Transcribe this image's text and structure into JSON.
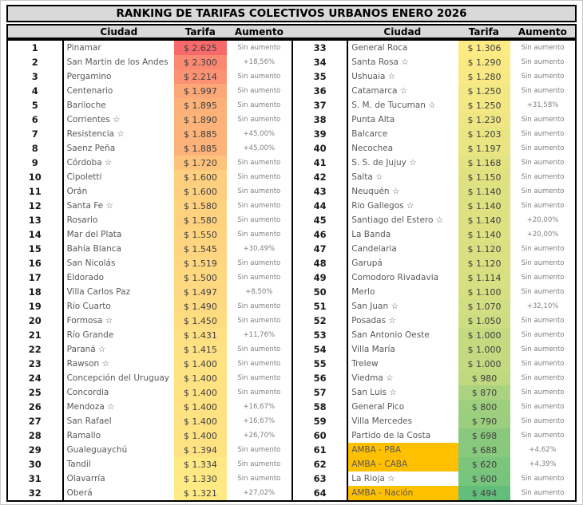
{
  "chart_data": {
    "type": "table",
    "title": "RANKING DE TARIFAS COLECTIVOS URBANOS ENERO 2026",
    "columns": {
      "rank": "",
      "ciudad": "Ciudad",
      "tarifa": "Tarifa",
      "aumento": "Aumento"
    },
    "color_scale": {
      "min": 494,
      "mid": 1313.5,
      "max": 2625,
      "min_color": "#63BE7B",
      "mid_color": "#FFEB84",
      "max_color": "#F8696B"
    },
    "colors": {
      "amba_highlight": "#FFC000",
      "header_bg": "#D9D9D9",
      "border": "#000000",
      "city_text": "#595959",
      "aumento_text": "#808080"
    },
    "layout": {
      "rows_per_column": 32,
      "split": "ranks 1-32 left half, ranks 33-64 right half"
    },
    "rows": [
      {
        "rank": 1,
        "city": "Pinamar",
        "tarifa": 2625,
        "tarifa_label": "$ 2.625",
        "aumento": "Sin aumento",
        "highlight": false
      },
      {
        "rank": 2,
        "city": "San Martin de los Andes",
        "tarifa": 2300,
        "tarifa_label": "$ 2.300",
        "aumento": "+18,56%",
        "highlight": false
      },
      {
        "rank": 3,
        "city": "Pergamino",
        "tarifa": 2214,
        "tarifa_label": "$ 2.214",
        "aumento": "Sin aumento",
        "highlight": false
      },
      {
        "rank": 4,
        "city": "Centenario",
        "tarifa": 1997,
        "tarifa_label": "$ 1.997",
        "aumento": "Sin aumento",
        "highlight": false
      },
      {
        "rank": 5,
        "city": "Bariloche",
        "tarifa": 1895,
        "tarifa_label": "$ 1.895",
        "aumento": "Sin aumento",
        "highlight": false
      },
      {
        "rank": 6,
        "city": "Corrientes ☆",
        "tarifa": 1890,
        "tarifa_label": "$ 1.890",
        "aumento": "Sin aumento",
        "highlight": false
      },
      {
        "rank": 7,
        "city": "Resistencia ☆",
        "tarifa": 1885,
        "tarifa_label": "$ 1.885",
        "aumento": "+45,00%",
        "highlight": false
      },
      {
        "rank": 8,
        "city": "Saenz Peña",
        "tarifa": 1885,
        "tarifa_label": "$ 1.885",
        "aumento": "+45,00%",
        "highlight": false
      },
      {
        "rank": 9,
        "city": "Córdoba ☆",
        "tarifa": 1720,
        "tarifa_label": "$ 1.720",
        "aumento": "Sin aumento",
        "highlight": false
      },
      {
        "rank": 10,
        "city": "Cipoletti",
        "tarifa": 1600,
        "tarifa_label": "$ 1.600",
        "aumento": "Sin aumento",
        "highlight": false
      },
      {
        "rank": 11,
        "city": "Orán",
        "tarifa": 1600,
        "tarifa_label": "$ 1.600",
        "aumento": "Sin aumento",
        "highlight": false
      },
      {
        "rank": 12,
        "city": "Santa Fe ☆",
        "tarifa": 1580,
        "tarifa_label": "$ 1.580",
        "aumento": "Sin aumento",
        "highlight": false
      },
      {
        "rank": 13,
        "city": "Rosario",
        "tarifa": 1580,
        "tarifa_label": "$ 1.580",
        "aumento": "Sin aumento",
        "highlight": false
      },
      {
        "rank": 14,
        "city": "Mar del Plata",
        "tarifa": 1550,
        "tarifa_label": "$ 1.550",
        "aumento": "Sin aumento",
        "highlight": false
      },
      {
        "rank": 15,
        "city": "Bahía Blanca",
        "tarifa": 1545,
        "tarifa_label": "$ 1.545",
        "aumento": "+30,49%",
        "highlight": false
      },
      {
        "rank": 16,
        "city": "San Nicolás",
        "tarifa": 1519,
        "tarifa_label": "$ 1.519",
        "aumento": "Sin aumento",
        "highlight": false
      },
      {
        "rank": 17,
        "city": "Eldorado",
        "tarifa": 1500,
        "tarifa_label": "$ 1.500",
        "aumento": "Sin aumento",
        "highlight": false
      },
      {
        "rank": 18,
        "city": "Villa Carlos Paz",
        "tarifa": 1497,
        "tarifa_label": "$ 1.497",
        "aumento": "+8,50%",
        "highlight": false
      },
      {
        "rank": 19,
        "city": "Río Cuarto",
        "tarifa": 1490,
        "tarifa_label": "$ 1.490",
        "aumento": "Sin aumento",
        "highlight": false
      },
      {
        "rank": 20,
        "city": "Formosa ☆",
        "tarifa": 1450,
        "tarifa_label": "$ 1.450",
        "aumento": "Sin aumento",
        "highlight": false
      },
      {
        "rank": 21,
        "city": "Río Grande",
        "tarifa": 1431,
        "tarifa_label": "$ 1.431",
        "aumento": "+11,76%",
        "highlight": false
      },
      {
        "rank": 22,
        "city": "Paraná ☆",
        "tarifa": 1415,
        "tarifa_label": "$ 1.415",
        "aumento": "Sin aumento",
        "highlight": false
      },
      {
        "rank": 23,
        "city": "Rawson ☆",
        "tarifa": 1400,
        "tarifa_label": "$ 1.400",
        "aumento": "Sin aumento",
        "highlight": false
      },
      {
        "rank": 24,
        "city": "Concepción del Uruguay",
        "tarifa": 1400,
        "tarifa_label": "$ 1.400",
        "aumento": "Sin aumento",
        "highlight": false
      },
      {
        "rank": 25,
        "city": "Concordia",
        "tarifa": 1400,
        "tarifa_label": "$ 1.400",
        "aumento": "Sin aumento",
        "highlight": false
      },
      {
        "rank": 26,
        "city": "Mendoza ☆",
        "tarifa": 1400,
        "tarifa_label": "$ 1.400",
        "aumento": "+16,67%",
        "highlight": false
      },
      {
        "rank": 27,
        "city": "San Rafael",
        "tarifa": 1400,
        "tarifa_label": "$ 1.400",
        "aumento": "+16,67%",
        "highlight": false
      },
      {
        "rank": 28,
        "city": "Ramallo",
        "tarifa": 1400,
        "tarifa_label": "$ 1.400",
        "aumento": "+26,70%",
        "highlight": false
      },
      {
        "rank": 29,
        "city": "Gualeguaychú",
        "tarifa": 1394,
        "tarifa_label": "$ 1.394",
        "aumento": "Sin aumento",
        "highlight": false
      },
      {
        "rank": 30,
        "city": "Tandil",
        "tarifa": 1334,
        "tarifa_label": "$ 1.334",
        "aumento": "Sin aumento",
        "highlight": false
      },
      {
        "rank": 31,
        "city": "Olavarría",
        "tarifa": 1330,
        "tarifa_label": "$ 1.330",
        "aumento": "Sin aumento",
        "highlight": false
      },
      {
        "rank": 32,
        "city": "Oberá",
        "tarifa": 1321,
        "tarifa_label": "$ 1.321",
        "aumento": "+27,02%",
        "highlight": false
      },
      {
        "rank": 33,
        "city": "General Roca",
        "tarifa": 1306,
        "tarifa_label": "$ 1.306",
        "aumento": "Sin aumento",
        "highlight": false
      },
      {
        "rank": 34,
        "city": "Santa Rosa ☆",
        "tarifa": 1290,
        "tarifa_label": "$ 1.290",
        "aumento": "Sin aumento",
        "highlight": false
      },
      {
        "rank": 35,
        "city": "Ushuaia ☆",
        "tarifa": 1280,
        "tarifa_label": "$ 1.280",
        "aumento": "Sin aumento",
        "highlight": false
      },
      {
        "rank": 36,
        "city": "Catamarca ☆",
        "tarifa": 1250,
        "tarifa_label": "$ 1.250",
        "aumento": "Sin aumento",
        "highlight": false
      },
      {
        "rank": 37,
        "city": "S. M. de Tucuman ☆",
        "tarifa": 1250,
        "tarifa_label": "$ 1.250",
        "aumento": "+31,58%",
        "highlight": false
      },
      {
        "rank": 38,
        "city": "Punta Alta",
        "tarifa": 1230,
        "tarifa_label": "$ 1.230",
        "aumento": "Sin aumento",
        "highlight": false
      },
      {
        "rank": 39,
        "city": "Balcarce",
        "tarifa": 1203,
        "tarifa_label": "$ 1.203",
        "aumento": "Sin aumento",
        "highlight": false
      },
      {
        "rank": 40,
        "city": "Necochea",
        "tarifa": 1197,
        "tarifa_label": "$ 1.197",
        "aumento": "Sin aumento",
        "highlight": false
      },
      {
        "rank": 41,
        "city": "S. S. de Jujuy ☆",
        "tarifa": 1168,
        "tarifa_label": "$ 1.168",
        "aumento": "Sin aumento",
        "highlight": false
      },
      {
        "rank": 42,
        "city": "Salta ☆",
        "tarifa": 1150,
        "tarifa_label": "$ 1.150",
        "aumento": "Sin aumento",
        "highlight": false
      },
      {
        "rank": 43,
        "city": "Neuquén ☆",
        "tarifa": 1140,
        "tarifa_label": "$ 1.140",
        "aumento": "Sin aumento",
        "highlight": false
      },
      {
        "rank": 44,
        "city": "Rio Gallegos ☆",
        "tarifa": 1140,
        "tarifa_label": "$ 1.140",
        "aumento": "Sin aumento",
        "highlight": false
      },
      {
        "rank": 45,
        "city": "Santiago del Estero ☆",
        "tarifa": 1140,
        "tarifa_label": "$ 1.140",
        "aumento": "+20,00%",
        "highlight": false
      },
      {
        "rank": 46,
        "city": "La Banda",
        "tarifa": 1140,
        "tarifa_label": "$ 1.140",
        "aumento": "+20,00%",
        "highlight": false
      },
      {
        "rank": 47,
        "city": "Candelaria",
        "tarifa": 1120,
        "tarifa_label": "$ 1.120",
        "aumento": "Sin aumento",
        "highlight": false
      },
      {
        "rank": 48,
        "city": "Garupá",
        "tarifa": 1120,
        "tarifa_label": "$ 1.120",
        "aumento": "Sin aumento",
        "highlight": false
      },
      {
        "rank": 49,
        "city": "Comodoro Rivadavia",
        "tarifa": 1114,
        "tarifa_label": "$ 1.114",
        "aumento": "Sin aumento",
        "highlight": false
      },
      {
        "rank": 50,
        "city": "Merlo",
        "tarifa": 1100,
        "tarifa_label": "$ 1.100",
        "aumento": "Sin aumento",
        "highlight": false
      },
      {
        "rank": 51,
        "city": "San Juan ☆",
        "tarifa": 1070,
        "tarifa_label": "$ 1.070",
        "aumento": "+32,10%",
        "highlight": false
      },
      {
        "rank": 52,
        "city": "Posadas ☆",
        "tarifa": 1050,
        "tarifa_label": "$ 1.050",
        "aumento": "Sin aumento",
        "highlight": false
      },
      {
        "rank": 53,
        "city": "San Antonio Oeste",
        "tarifa": 1000,
        "tarifa_label": "$ 1.000",
        "aumento": "Sin aumento",
        "highlight": false
      },
      {
        "rank": 54,
        "city": "Villa María",
        "tarifa": 1000,
        "tarifa_label": "$ 1.000",
        "aumento": "Sin aumento",
        "highlight": false
      },
      {
        "rank": 55,
        "city": "Trelew",
        "tarifa": 1000,
        "tarifa_label": "$ 1.000",
        "aumento": "Sin aumento",
        "highlight": false
      },
      {
        "rank": 56,
        "city": "Viedma ☆",
        "tarifa": 980,
        "tarifa_label": "$ 980",
        "aumento": "Sin aumento",
        "highlight": false
      },
      {
        "rank": 57,
        "city": "San Luis ☆",
        "tarifa": 870,
        "tarifa_label": "$ 870",
        "aumento": "Sin aumento",
        "highlight": false
      },
      {
        "rank": 58,
        "city": "General Pico",
        "tarifa": 800,
        "tarifa_label": "$ 800",
        "aumento": "Sin aumento",
        "highlight": false
      },
      {
        "rank": 59,
        "city": "Villa Mercedes",
        "tarifa": 790,
        "tarifa_label": "$ 790",
        "aumento": "Sin aumento",
        "highlight": false
      },
      {
        "rank": 60,
        "city": "Partido de la Costa",
        "tarifa": 698,
        "tarifa_label": "$ 698",
        "aumento": "Sin aumento",
        "highlight": false
      },
      {
        "rank": 61,
        "city": "AMBA - PBA",
        "tarifa": 688,
        "tarifa_label": "$ 688",
        "aumento": "+4,62%",
        "highlight": true
      },
      {
        "rank": 62,
        "city": "AMBA - CABA",
        "tarifa": 620,
        "tarifa_label": "$ 620",
        "aumento": "+4,39%",
        "highlight": true
      },
      {
        "rank": 63,
        "city": "La Rioja ☆",
        "tarifa": 600,
        "tarifa_label": "$ 600",
        "aumento": "Sin aumento",
        "highlight": false
      },
      {
        "rank": 64,
        "city": "AMBA - Nación",
        "tarifa": 494,
        "tarifa_label": "$ 494",
        "aumento": "Sin aumento",
        "highlight": true
      }
    ]
  }
}
